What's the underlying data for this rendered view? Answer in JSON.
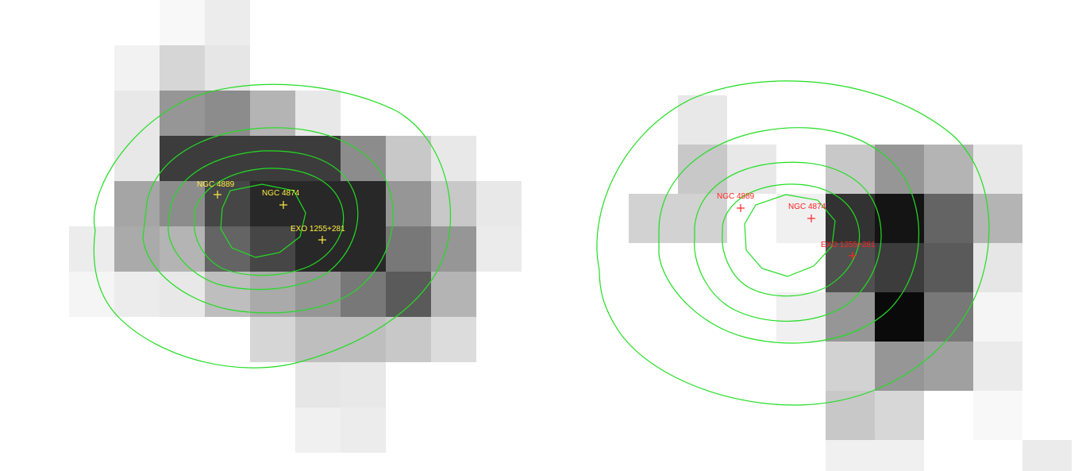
{
  "colors": {
    "contour": "#22dd22",
    "left_marker": "#ffee44",
    "right_marker": "#ff2222"
  },
  "left_panel": {
    "sources": [
      {
        "name": "NGC 4889"
      },
      {
        "name": "NGC 4874"
      },
      {
        "name": "EXO 1255+281"
      }
    ]
  },
  "right_panel": {
    "sources": [
      {
        "name": "NGC 4889"
      },
      {
        "name": "NGC 4874"
      },
      {
        "name": "EXO 1255+281"
      }
    ]
  }
}
